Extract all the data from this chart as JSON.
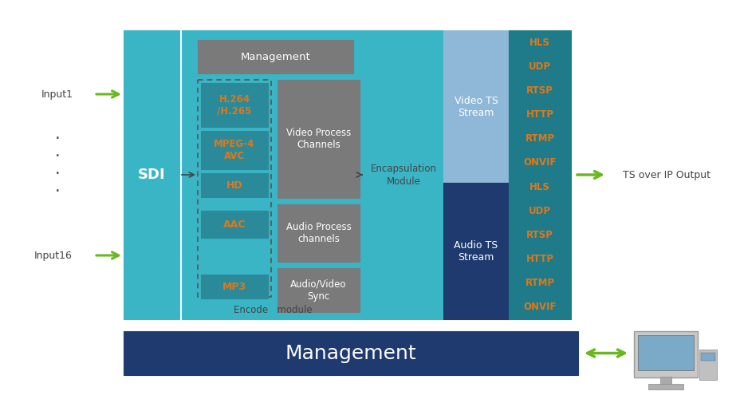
{
  "bg_color": "#ffffff",
  "cyan_bg": "#3ab5c6",
  "teal_codec": "#2a8a9a",
  "dark_navy": "#1e3a6e",
  "light_blue_vts": "#8fb8d8",
  "gray_box": "#7a7a7a",
  "orange_text": "#e07818",
  "white_text": "#ffffff",
  "dark_text": "#444444",
  "green_arrow": "#6ab820",
  "management_bar_color": "#1e3a6e",
  "protocol_bg": "#1f7a8a",
  "codec_labels": [
    "H.264\n/H.265",
    "MPEG-4\nAVC",
    "HD"
  ],
  "audio_labels": [
    "AAC"
  ],
  "sync_labels": [
    "MP3"
  ],
  "video_ts_protocols": [
    "HLS",
    "UDP",
    "RTSP",
    "HTTP",
    "RTMP",
    "ONVIF"
  ],
  "audio_ts_protocols": [
    "HLS",
    "UDP",
    "RTSP",
    "HTTP",
    "RTMP",
    "ONVIF"
  ],
  "sdi_label": "SDI",
  "encode_module_label": "Encode   module",
  "management_box_label": "Management",
  "video_process_label": "Video Process\nChannels",
  "audio_process_label": "Audio Process\nchannels",
  "av_sync_label": "Audio/Video\nSync",
  "encapsulation_label1": "Encapsulation",
  "encapsulation_label2": "Module",
  "video_ts_label": "Video TS\nStream",
  "audio_ts_label": "Audio TS\nStream",
  "ts_output_label": "TS over IP Output",
  "management_bottom_label": "Management",
  "input1_label": "Input1",
  "input16_label": "Input16",
  "dots": [
    ".",
    ".",
    ".",
    "."
  ]
}
